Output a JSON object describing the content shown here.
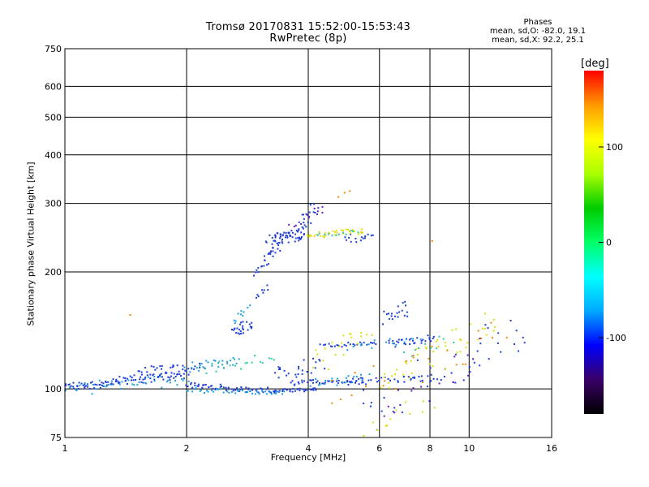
{
  "chart_data": {
    "type": "scatter",
    "title": "Tromsø 20170831 15:52:00-15:53:43",
    "subtitle": "RwPretec (8p)",
    "xlabel": "Frequency [MHz]",
    "ylabel": "Stationary phase Virtual Height [km]",
    "x_scale": "log",
    "y_scale": "log",
    "xlim": [
      1,
      16
    ],
    "ylim": [
      75,
      750
    ],
    "x_ticks": [
      "1",
      "2",
      "4",
      "6",
      "8",
      "10",
      "16"
    ],
    "y_ticks": [
      "75",
      "100",
      "200",
      "300",
      "400",
      "500",
      "600",
      "750"
    ],
    "grid": true,
    "stats": {
      "heading": "Phases",
      "line_o": "mean, sd,O: -82.0, 19.1",
      "line_x": "mean, sd,X:  92.2, 25.1"
    },
    "colorbar": {
      "label": "[deg]",
      "range": [
        -180,
        180
      ],
      "ticks": [
        "100",
        "0",
        "-100"
      ],
      "colormap": [
        "#000000",
        "#3a0066",
        "#0000ff",
        "#00aaff",
        "#00ffff",
        "#00ff66",
        "#00cc00",
        "#aaff00",
        "#ffff00",
        "#ff9900",
        "#ff0000"
      ]
    },
    "series": [
      {
        "name": "",
        "color": "#1e3fd6",
        "traces": [
          {
            "x": [
              1.0,
              1.35
            ],
            "y": [
              101,
              104
            ],
            "n": 45,
            "spread": 0.02
          },
          {
            "x": [
              1.35,
              2.0
            ],
            "y": [
              104,
              110
            ],
            "n": 55,
            "spread": 0.02
          },
          {
            "x": [
              1.5,
              2.2
            ],
            "y": [
              110,
              116
            ],
            "n": 30,
            "spread": 0.02
          },
          {
            "x": [
              2.0,
              3.3
            ],
            "y": [
              103,
              98
            ],
            "n": 60,
            "spread": 0.012
          },
          {
            "x": [
              3.3,
              4.2
            ],
            "y": [
              98,
              100
            ],
            "n": 30,
            "spread": 0.01
          },
          {
            "x": [
              3.6,
              5.5
            ],
            "y": [
              103,
              106
            ],
            "n": 40,
            "spread": 0.012
          },
          {
            "x": [
              5.0,
              8.5
            ],
            "y": [
              104,
              107
            ],
            "n": 35,
            "spread": 0.015
          },
          {
            "x": [
              3.2,
              3.9
            ],
            "y": [
              238,
              255
            ],
            "n": 60,
            "spread": 0.03
          },
          {
            "x": [
              3.1,
              3.4
            ],
            "y": [
              215,
              232
            ],
            "n": 15,
            "spread": 0.02
          },
          {
            "x": [
              3.8,
              4.2
            ],
            "y": [
              255,
              300
            ],
            "n": 20,
            "spread": 0.03
          },
          {
            "x": [
              2.95,
              3.15
            ],
            "y": [
              195,
              215
            ],
            "n": 10,
            "spread": 0.02
          },
          {
            "x": [
              2.6,
              2.9
            ],
            "y": [
              138,
              150
            ],
            "n": 25,
            "spread": 0.025
          },
          {
            "x": [
              3.0,
              3.15
            ],
            "y": [
              170,
              185
            ],
            "n": 8,
            "spread": 0.02
          },
          {
            "x": [
              4.3,
              5.9
            ],
            "y": [
              128,
              132
            ],
            "n": 25,
            "spread": 0.01
          },
          {
            "x": [
              6.3,
              8.2
            ],
            "y": [
              130,
              135
            ],
            "n": 30,
            "spread": 0.02
          },
          {
            "x": [
              6.2,
              7.1
            ],
            "y": [
              150,
              165
            ],
            "n": 20,
            "spread": 0.04
          },
          {
            "x": [
              3.3,
              4.3
            ],
            "y": [
              108,
              118
            ],
            "n": 25,
            "spread": 0.04
          },
          {
            "x": [
              4.9,
              5.8
            ],
            "y": [
              240,
              250
            ],
            "n": 15,
            "spread": 0.02
          },
          {
            "x": [
              5.5,
              14.0
            ],
            "y": [
              78,
              160
            ],
            "n": 45,
            "spread": 0.05
          }
        ]
      },
      {
        "name": "",
        "color": "#1e9ee0",
        "traces": [
          {
            "x": [
              1.0,
              2.0
            ],
            "y": [
              98,
              108
            ],
            "n": 40,
            "spread": 0.025
          },
          {
            "x": [
              2.0,
              3.5
            ],
            "y": [
              100,
              97
            ],
            "n": 40,
            "spread": 0.01
          },
          {
            "x": [
              2.0,
              2.7
            ],
            "y": [
              112,
              120
            ],
            "n": 25,
            "spread": 0.02
          },
          {
            "x": [
              2.6,
              2.85
            ],
            "y": [
              145,
              162
            ],
            "n": 10,
            "spread": 0.02
          },
          {
            "x": [
              4.1,
              5.6
            ],
            "y": [
              103,
              107
            ],
            "n": 20,
            "spread": 0.02
          },
          {
            "x": [
              5.0,
              7.5
            ],
            "y": [
              126,
              135
            ],
            "n": 15,
            "spread": 0.03
          }
        ]
      },
      {
        "name": "",
        "color": "#dddd10",
        "traces": [
          {
            "x": [
              3.95,
              5.5
            ],
            "y": [
              248,
              256
            ],
            "n": 35,
            "spread": 0.015
          },
          {
            "x": [
              4.2,
              5.6
            ],
            "y": [
              108,
              150
            ],
            "n": 20,
            "spread": 0.04
          },
          {
            "x": [
              6.0,
              11.5
            ],
            "y": [
              95,
              160
            ],
            "n": 45,
            "spread": 0.05
          },
          {
            "x": [
              5.5,
              8.0
            ],
            "y": [
              75,
              95
            ],
            "n": 12,
            "spread": 0.04
          }
        ]
      },
      {
        "name": "",
        "color": "#2ec8a0",
        "traces": [
          {
            "x": [
              2.2,
              3.3
            ],
            "y": [
              110,
              122
            ],
            "n": 20,
            "spread": 0.02
          },
          {
            "x": [
              4.2,
              5.3
            ],
            "y": [
              246,
              254
            ],
            "n": 12,
            "spread": 0.01
          },
          {
            "x": [
              7.0,
              9.0
            ],
            "y": [
              120,
              140
            ],
            "n": 10,
            "spread": 0.03
          }
        ]
      },
      {
        "name": "",
        "color": "#ee8a10",
        "traces": [
          {
            "x": [
              4.5,
              12.0
            ],
            "y": [
              85,
              150
            ],
            "n": 25,
            "spread": 0.05
          },
          {
            "x": [
              1.45,
              1.45
            ],
            "y": [
              155,
              155
            ],
            "n": 1,
            "spread": 0.0
          },
          {
            "x": [
              4.8,
              5.0
            ],
            "y": [
              310,
              320
            ],
            "n": 3,
            "spread": 0.02
          },
          {
            "x": [
              8.1,
              8.1
            ],
            "y": [
              240,
              240
            ],
            "n": 1,
            "spread": 0.0
          }
        ]
      },
      {
        "name": "",
        "color": "#6a1fb8",
        "traces": [
          {
            "x": [
              3.6,
              4.4
            ],
            "y": [
              250,
              300
            ],
            "n": 10,
            "spread": 0.03
          },
          {
            "x": [
              6.0,
              11.0
            ],
            "y": [
              80,
              140
            ],
            "n": 15,
            "spread": 0.05
          }
        ]
      }
    ]
  }
}
